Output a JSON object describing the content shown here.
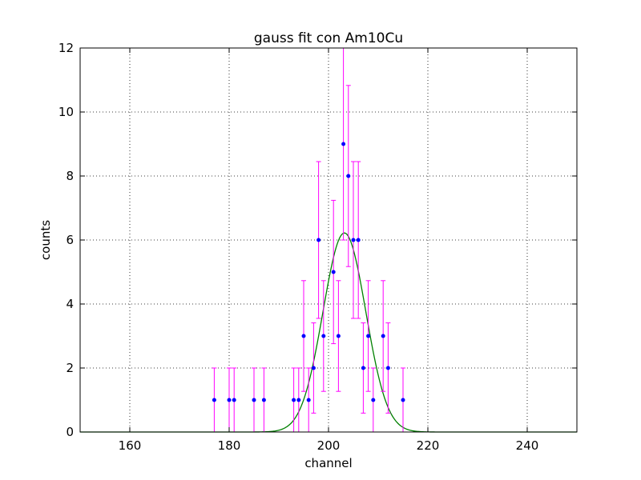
{
  "chart_data": {
    "type": "scatter",
    "title": "gauss fit con Am10Cu",
    "xlabel": "channel",
    "ylabel": "counts",
    "xlim": [
      150,
      250
    ],
    "ylim": [
      0,
      12
    ],
    "xticks": [
      160,
      180,
      200,
      220,
      240
    ],
    "yticks": [
      0,
      2,
      4,
      6,
      8,
      10,
      12
    ],
    "grid": true,
    "series": [
      {
        "kind": "points-with-errorbars",
        "color": "#0000ff",
        "errorbar_color": "#ff00ff",
        "x": [
          177,
          180,
          181,
          185,
          187,
          193,
          194,
          195,
          196,
          197,
          198,
          199,
          201,
          202,
          203,
          204,
          205,
          206,
          207,
          208,
          209,
          211,
          212,
          215
        ],
        "y": [
          1,
          1,
          1,
          1,
          1,
          1,
          1,
          3,
          1,
          2,
          6,
          3,
          5,
          3,
          9,
          8,
          6,
          6,
          2,
          3,
          1,
          3,
          2,
          1
        ],
        "yerr": [
          1,
          1,
          1,
          1,
          1,
          1,
          1,
          1.73,
          1,
          1.41,
          2.45,
          1.73,
          2.24,
          1.73,
          3,
          2.83,
          2.45,
          2.45,
          1.41,
          1.73,
          1,
          1.73,
          1.41,
          1
        ]
      },
      {
        "kind": "fit-curve",
        "color": "#008000",
        "model": "gaussian",
        "amplitude": 6.22,
        "mean": 203.2,
        "sigma": 4.3
      }
    ]
  }
}
